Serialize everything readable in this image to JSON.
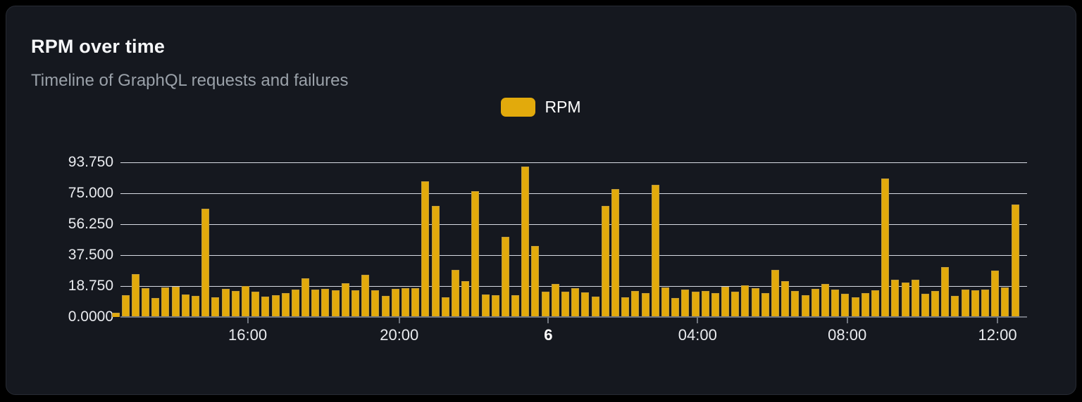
{
  "card": {
    "title": "RPM over time",
    "subtitle": "Timeline of GraphQL requests and failures"
  },
  "legend": {
    "items": [
      {
        "label": "RPM",
        "color": "#e2aa0c"
      }
    ]
  },
  "colors": {
    "page_background": "#000000",
    "card_background": "#15181f",
    "card_border": "#272b33",
    "bar": "#e2aa0c",
    "gridline": "#d8dbe3",
    "axis_line": "#70757e",
    "title_text": "#f7f8fa",
    "subtitle_text": "#9aa1a9",
    "axis_label_text": "#e9ebef"
  },
  "chart_data": {
    "type": "bar",
    "title": "RPM over time",
    "subtitle": "Timeline of GraphQL requests and failures",
    "grid": true,
    "legend_position": "top-center",
    "ylim": [
      0,
      93.75
    ],
    "yticks": [
      {
        "value": 0,
        "label": "0.0000"
      },
      {
        "value": 18.75,
        "label": "18.750"
      },
      {
        "value": 37.5,
        "label": "37.500"
      },
      {
        "value": 56.25,
        "label": "56.250"
      },
      {
        "value": 75,
        "label": "75.000"
      },
      {
        "value": 93.75,
        "label": "93.750"
      }
    ],
    "xticks": [
      {
        "label": "16:00",
        "pos": 0.1403,
        "bold": false
      },
      {
        "label": "20:00",
        "pos": 0.3075,
        "bold": false
      },
      {
        "label": "6",
        "pos": 0.4719,
        "bold": true
      },
      {
        "label": "04:00",
        "pos": 0.6366,
        "bold": false
      },
      {
        "label": "08:00",
        "pos": 0.8016,
        "bold": false
      },
      {
        "label": "12:00",
        "pos": 0.9674,
        "bold": false
      }
    ],
    "series": [
      {
        "name": "RPM",
        "color": "#e2aa0c",
        "values": [
          2.5,
          13.2,
          26.0,
          17.3,
          11.6,
          18.0,
          18.2,
          13.6,
          12.8,
          65.6,
          12.1,
          17.0,
          15.9,
          18.9,
          15.2,
          12.2,
          13.1,
          14.4,
          16.6,
          23.4,
          16.7,
          17.0,
          16.2,
          20.6,
          16.1,
          25.6,
          16.3,
          12.7,
          17.0,
          17.3,
          17.3,
          82.1,
          67.4,
          12.1,
          28.4,
          21.6,
          76.4,
          13.8,
          13.1,
          48.6,
          13.3,
          91.3,
          42.9,
          15.3,
          20.2,
          15.4,
          17.3,
          14.8,
          12.3,
          67.5,
          77.7,
          11.9,
          15.6,
          14.6,
          80.0,
          17.8,
          11.4,
          16.7,
          15.2,
          15.9,
          14.6,
          18.5,
          15.2,
          19.2,
          17.3,
          14.6,
          28.4,
          21.6,
          15.6,
          13.2,
          17.0,
          20.2,
          16.7,
          13.9,
          12.1,
          14.3,
          16.3,
          83.8,
          22.4,
          20.9,
          22.7,
          13.9,
          15.9,
          30.1,
          12.8,
          16.6,
          16.0,
          16.6,
          28.0,
          18.0,
          68.2
        ]
      }
    ]
  }
}
